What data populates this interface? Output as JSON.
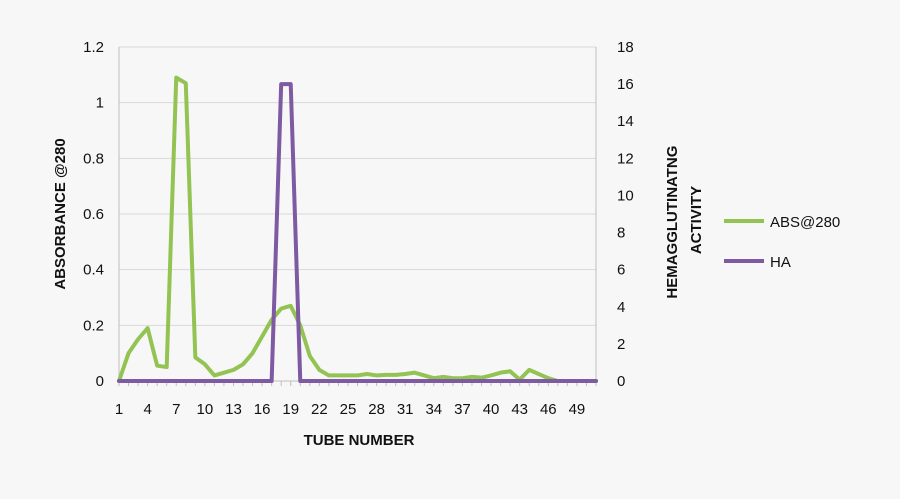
{
  "chart_data": {
    "type": "line",
    "xlabel": "TUBE NUMBER",
    "ylabel_left": "ABSORBANCE @280",
    "ylabel_right": [
      "HEMAGGLUTINATNG",
      "ACTIVITY"
    ],
    "x_tick_labels": [
      "1",
      "4",
      "7",
      "10",
      "13",
      "16",
      "19",
      "22",
      "25",
      "28",
      "31",
      "34",
      "37",
      "40",
      "43",
      "46",
      "49"
    ],
    "left_ticks": [
      "0",
      "0.2",
      "0.4",
      "0.6",
      "0.8",
      "1",
      "1.2"
    ],
    "right_ticks": [
      "0",
      "2",
      "4",
      "6",
      "8",
      "10",
      "12",
      "14",
      "16",
      "18"
    ],
    "ylim_left": [
      0,
      1.2
    ],
    "ylim_right": [
      0,
      18
    ],
    "xlim": [
      1,
      51
    ],
    "grid": true,
    "legend_position": "right",
    "x": [
      1,
      2,
      3,
      4,
      5,
      6,
      7,
      8,
      9,
      10,
      11,
      12,
      13,
      14,
      15,
      16,
      17,
      18,
      19,
      20,
      21,
      22,
      23,
      24,
      25,
      26,
      27,
      28,
      29,
      30,
      31,
      32,
      33,
      34,
      35,
      36,
      37,
      38,
      39,
      40,
      41,
      42,
      43,
      44,
      45,
      46,
      47,
      48,
      49,
      50,
      51
    ],
    "series": [
      {
        "name": "ABS@280",
        "axis": "left",
        "color": "#92c353",
        "values": [
          0,
          0.1,
          0.15,
          0.19,
          0.055,
          0.05,
          1.09,
          1.07,
          0.085,
          0.06,
          0.02,
          0.03,
          0.04,
          0.06,
          0.1,
          0.16,
          0.22,
          0.26,
          0.27,
          0.2,
          0.09,
          0.04,
          0.02,
          0.02,
          0.02,
          0.02,
          0.025,
          0.02,
          0.022,
          0.022,
          0.025,
          0.03,
          0.02,
          0.01,
          0.015,
          0.01,
          0.01,
          0.015,
          0.012,
          0.02,
          0.03,
          0.035,
          0.005,
          0.04,
          0.025,
          0.01,
          0,
          0,
          0,
          0,
          0
        ]
      },
      {
        "name": "HA",
        "axis": "right",
        "color": "#7e5aa2",
        "values": [
          0,
          0,
          0,
          0,
          0,
          0,
          0,
          0,
          0,
          0,
          0,
          0,
          0,
          0,
          0,
          0,
          0,
          16,
          16,
          0,
          0,
          0,
          0,
          0,
          0,
          0,
          0,
          0,
          0,
          0,
          0,
          0,
          0,
          0,
          0,
          0,
          0,
          0,
          0,
          0,
          0,
          0,
          0,
          0,
          0,
          0,
          0,
          0,
          0,
          0,
          0
        ]
      }
    ]
  }
}
